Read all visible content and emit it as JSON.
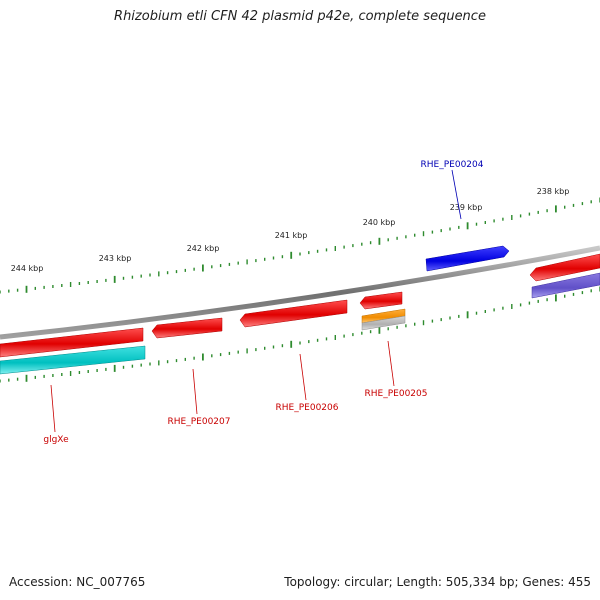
{
  "title": "Rhizobium etli CFN 42 plasmid p42e, complete sequence",
  "footer": {
    "accession": "Accession: NC_007765",
    "summary": "Topology: circular; Length: 505,334 bp; Genes: 455"
  },
  "scale_labels": [
    "244 kbp",
    "243 kbp",
    "242 kbp",
    "241 kbp",
    "240 kbp",
    "239 kbp",
    "238 kbp"
  ],
  "gene_labels": [
    {
      "id": "glgXe",
      "text": "glgXe",
      "color": "#c80000"
    },
    {
      "id": "rhe-pe00207",
      "text": "RHE_PE00207",
      "color": "#c80000"
    },
    {
      "id": "rhe-pe00206",
      "text": "RHE_PE00206",
      "color": "#c80000"
    },
    {
      "id": "rhe-pe00205",
      "text": "RHE_PE00205",
      "color": "#c80000"
    },
    {
      "id": "rhe-pe00204",
      "text": "RHE_PE00204",
      "color": "#0000b4"
    }
  ],
  "colors": {
    "backbone": "#808080",
    "red_gene": "#e60000",
    "blue_gene": "#0000e6",
    "cyan_gene": "#00c8c8",
    "orange_gene": "#f09000",
    "grey_gene": "#b4b4b4",
    "violet_gene": "#6a5acd",
    "tick": "#2e8b2e"
  }
}
